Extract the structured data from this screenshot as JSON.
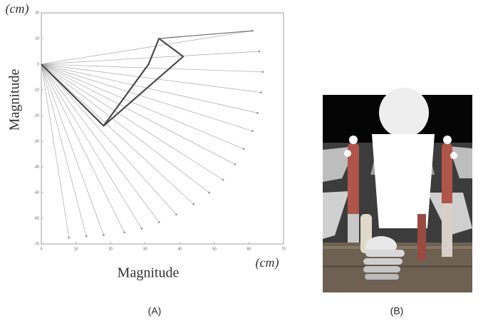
{
  "chart_data": {
    "type": "line",
    "xlabel": "Magnitude",
    "ylabel": "Magnitude",
    "x_unit": "(cm)",
    "y_unit": "(cm)",
    "xlim": [
      0,
      70
    ],
    "xticks": [
      0,
      10,
      20,
      30,
      40,
      50,
      60,
      70
    ],
    "ylim": [
      -70,
      20
    ],
    "yticks": [
      -70,
      -60,
      -50,
      -40,
      -30,
      -20,
      -10,
      0,
      10,
      20
    ],
    "series": [
      {
        "color": "#9a9a9a",
        "style": "dotted",
        "x": [
          61,
          63,
          64,
          63.5,
          62.5,
          61,
          58.5,
          56,
          52.5,
          48.5,
          44,
          39,
          34,
          29,
          24,
          18,
          13,
          8
        ],
        "values": [
          13,
          5,
          -3,
          -11,
          -19,
          -26,
          -33,
          -39,
          -45,
          -50,
          -54.5,
          -58.5,
          -61.5,
          -64,
          -65.5,
          -66.5,
          -67,
          -67.5
        ]
      },
      {
        "color": "#4a4a4a",
        "style": "solid",
        "x": [
          0,
          18,
          31,
          34,
          41,
          18
        ],
        "values": [
          0,
          -24,
          0,
          10,
          3,
          -24
        ]
      },
      {
        "color": "#6a6a6a",
        "style": "solid",
        "x": [
          34,
          61
        ],
        "values": [
          10,
          13
        ]
      }
    ]
  },
  "captions": [
    "(A)",
    "(B)"
  ]
}
